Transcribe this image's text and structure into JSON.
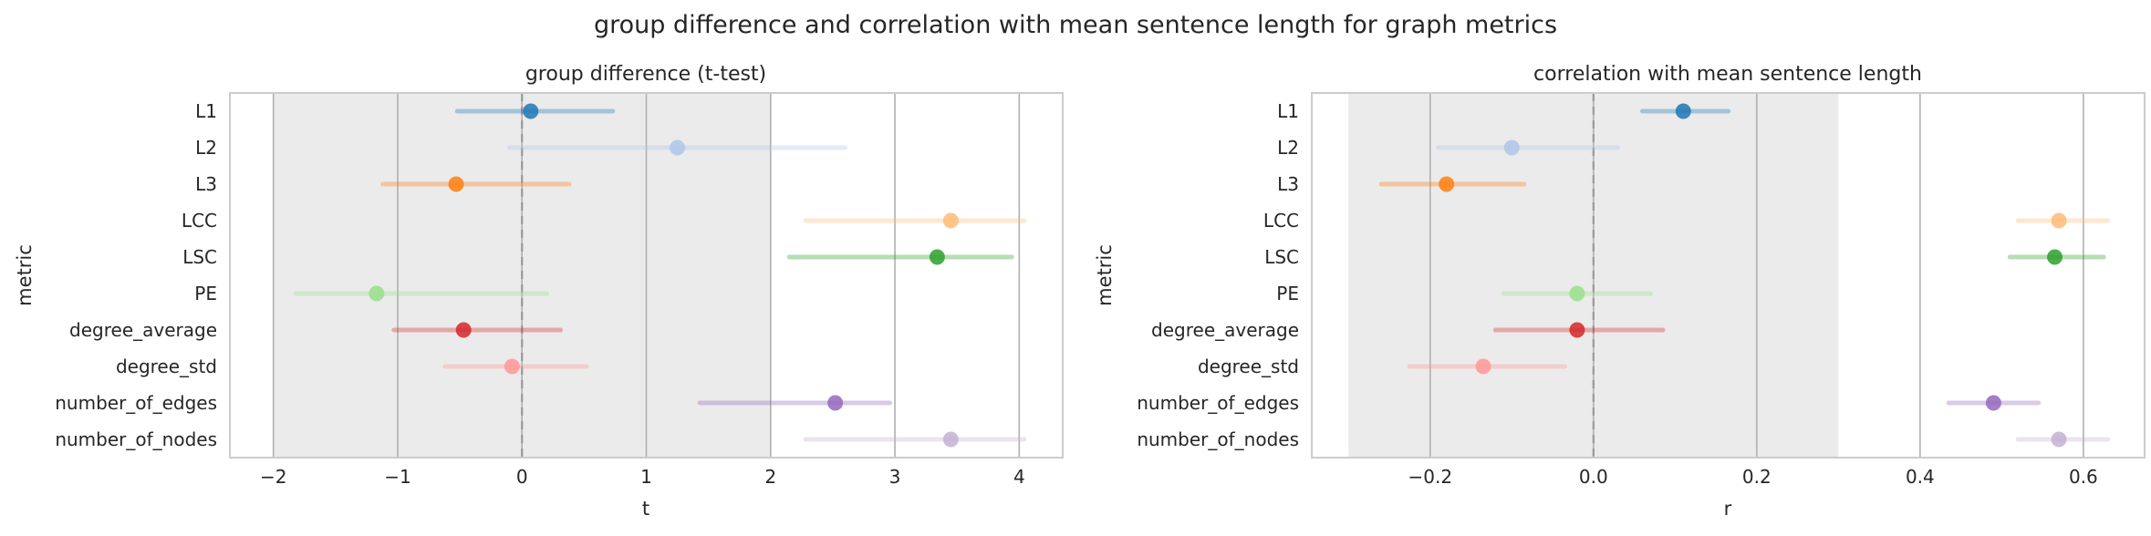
{
  "figure": {
    "title": "group difference and correlation with mean sentence length for graph metrics"
  },
  "colors": {
    "shade": "#ebebeb",
    "grid": "#b0b0b0",
    "frame": "#cccccc",
    "zero": "#999999"
  },
  "chart_data": [
    {
      "type": "scatter",
      "subtype": "point-range",
      "title": "group difference (t-test)",
      "xlabel": "t",
      "ylabel": "metric",
      "xlim": [
        -2.35,
        4.35
      ],
      "xticks": [
        -2,
        -1,
        0,
        1,
        2,
        3,
        4
      ],
      "xtick_labels": [
        "−2",
        "−1",
        "0",
        "1",
        "2",
        "3",
        "4"
      ],
      "shaded_region": [
        -2,
        2
      ],
      "reference_line": 0,
      "grid": true,
      "categories": [
        "L1",
        "L2",
        "L3",
        "LCC",
        "LSC",
        "PE",
        "degree_average",
        "degree_std",
        "number_of_edges",
        "number_of_nodes"
      ],
      "values": [
        0.07,
        1.25,
        -0.53,
        3.45,
        3.34,
        -1.17,
        -0.47,
        -0.08,
        2.52,
        3.45
      ],
      "ci_low": [
        -0.52,
        -0.1,
        -1.12,
        2.28,
        2.15,
        -1.82,
        -1.03,
        -0.62,
        1.43,
        2.28
      ],
      "ci_high": [
        0.73,
        2.6,
        0.38,
        4.04,
        3.94,
        0.2,
        0.31,
        0.52,
        2.96,
        4.04
      ],
      "colors": [
        "#1f77b4",
        "#aec7e8",
        "#ff7f0e",
        "#ffbb78",
        "#2ca02c",
        "#98df8a",
        "#d62728",
        "#ff9896",
        "#9467bd",
        "#c5b0d5"
      ]
    },
    {
      "type": "scatter",
      "subtype": "point-range",
      "title": "correlation with mean sentence length",
      "xlabel": "r",
      "ylabel": "metric",
      "xlim": [
        -0.345,
        0.675
      ],
      "xticks": [
        -0.2,
        0.0,
        0.2,
        0.4,
        0.6
      ],
      "xtick_labels": [
        "−0.2",
        "0.0",
        "0.2",
        "0.4",
        "0.6"
      ],
      "shaded_region": [
        -0.3,
        0.3
      ],
      "reference_line": 0,
      "grid": true,
      "categories": [
        "L1",
        "L2",
        "L3",
        "LCC",
        "LSC",
        "PE",
        "degree_average",
        "degree_std",
        "number_of_edges",
        "number_of_nodes"
      ],
      "values": [
        0.11,
        -0.1,
        -0.18,
        0.57,
        0.565,
        -0.02,
        -0.02,
        -0.135,
        0.49,
        0.57
      ],
      "ci_low": [
        0.06,
        -0.19,
        -0.26,
        0.52,
        0.51,
        -0.11,
        -0.12,
        -0.225,
        0.435,
        0.52
      ],
      "ci_high": [
        0.165,
        0.03,
        -0.085,
        0.63,
        0.625,
        0.07,
        0.085,
        -0.035,
        0.545,
        0.63
      ],
      "colors": [
        "#1f77b4",
        "#aec7e8",
        "#ff7f0e",
        "#ffbb78",
        "#2ca02c",
        "#98df8a",
        "#d62728",
        "#ff9896",
        "#9467bd",
        "#c5b0d5"
      ]
    }
  ]
}
